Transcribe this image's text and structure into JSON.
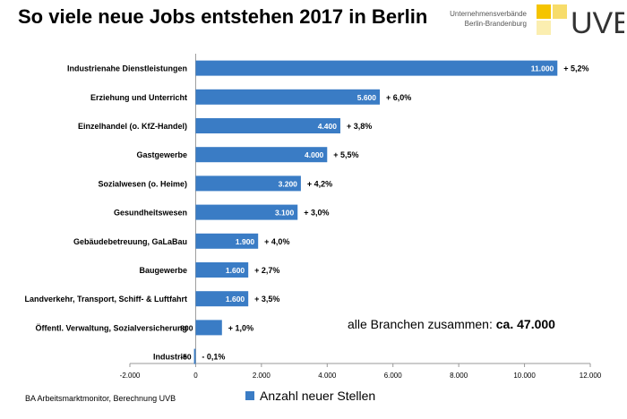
{
  "header": {
    "title": "So viele neue Jobs entstehen 2017 in Berlin",
    "brand_line1": "Unternehmensverbände",
    "brand_line2": "Berlin-Brandenburg",
    "brand_logo": "UVB",
    "logo_colors": [
      "#f5c400",
      "#f7dc6a",
      "#fbeeb0"
    ]
  },
  "summary": {
    "label": "alle Branchen zusammen:",
    "value": "ca. 47.000"
  },
  "footer": {
    "source": "BA Arbeitsmarktmonitor, Berechnung UVB",
    "legend_label": "Anzahl neuer Stellen"
  },
  "colors": {
    "bar": "#3a7cc5",
    "bar_label": "#ffffff",
    "axis": "#999999"
  },
  "chart_data": {
    "type": "bar",
    "orientation": "horizontal",
    "categories": [
      "Industrienahe Dienstleistungen",
      "Erziehung und Unterricht",
      "Einzelhandel (o. KfZ-Handel)",
      "Gastgewerbe",
      "Sozialwesen (o. Heime)",
      "Gesundheitswesen",
      "Gebäudebetreuung, GaLaBau",
      "Baugewerbe",
      "Landverkehr, Transport, Schiff- & Luftfahrt",
      "Öffentl. Verwaltung, Sozialversicherung",
      "Industrie"
    ],
    "series": [
      {
        "name": "Anzahl neuer Stellen",
        "values": [
          11000,
          5600,
          4400,
          4000,
          3200,
          3100,
          1900,
          1600,
          1600,
          800,
          -50
        ]
      }
    ],
    "value_labels": [
      "11.000",
      "5.600",
      "4.400",
      "4.000",
      "3.200",
      "3.100",
      "1.900",
      "1.600",
      "1.600",
      "800",
      "-50"
    ],
    "growth_labels": [
      "+ 5,2%",
      "+ 6,0%",
      "+ 3,8%",
      "+ 5,5%",
      "+ 4,2%",
      "+ 3,0%",
      "+ 4,0%",
      "+ 2,7%",
      "+ 3,5%",
      "+ 1,0%",
      "- 0,1%"
    ],
    "xlim": [
      -2000,
      12000
    ],
    "ticks": [
      -2000,
      0,
      2000,
      4000,
      6000,
      8000,
      10000,
      12000
    ],
    "tick_labels": [
      "-2.000",
      "0",
      "2.000",
      "4.000",
      "6.000",
      "8.000",
      "10.000",
      "12.000"
    ],
    "grid": false,
    "legend": "bottom-center"
  }
}
